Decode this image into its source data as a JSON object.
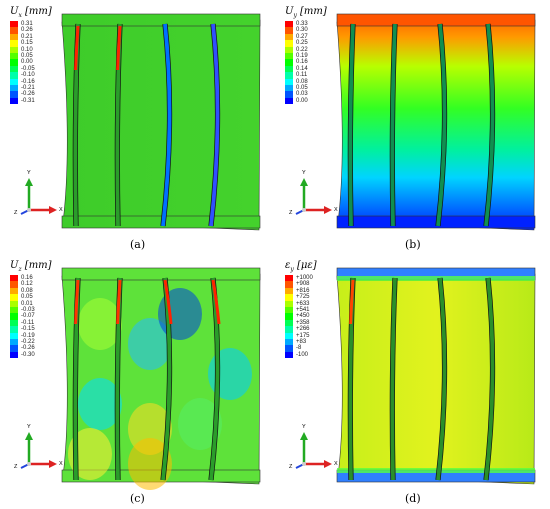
{
  "panels": [
    {
      "id": "a",
      "caption": "(a)",
      "legend_symbol": "U",
      "legend_sub": "x",
      "legend_unit": "[mm]",
      "values": [
        "0.31",
        "0.26",
        "0.21",
        "0.15",
        "0.10",
        "0.05",
        "0.00",
        "-0.05",
        "-0.10",
        "-0.16",
        "-0.21",
        "-0.26",
        "-0.31"
      ],
      "colors": [
        "#ff0000",
        "#ff5500",
        "#ffaa00",
        "#ffff00",
        "#aaff00",
        "#55ff00",
        "#00ff00",
        "#00ff55",
        "#00ffaa",
        "#00ffff",
        "#00aaff",
        "#0055ff",
        "#0000ff"
      ],
      "field": "ux",
      "triad": {
        "y": "Y",
        "z": "Z",
        "x": "X"
      }
    },
    {
      "id": "b",
      "caption": "(b)",
      "legend_symbol": "U",
      "legend_sub": "y",
      "legend_unit": "[mm]",
      "values": [
        "0.33",
        "0.30",
        "0.27",
        "0.25",
        "0.22",
        "0.19",
        "0.16",
        "0.14",
        "0.11",
        "0.08",
        "0.05",
        "0.03",
        "0.00"
      ],
      "colors": [
        "#ff0000",
        "#ff5500",
        "#ffaa00",
        "#ffff00",
        "#aaff00",
        "#55ff00",
        "#00ff00",
        "#00ff55",
        "#00ffaa",
        "#00ffff",
        "#00aaff",
        "#0055ff",
        "#0000ff"
      ],
      "field": "uy",
      "triad": {
        "y": "Y",
        "z": "Z",
        "x": "X"
      }
    },
    {
      "id": "c",
      "caption": "(c)",
      "legend_symbol": "U",
      "legend_sub": "z",
      "legend_unit": "[mm]",
      "values": [
        "0.16",
        "0.12",
        "0.08",
        "0.05",
        "0.01",
        "-0.03",
        "-0.07",
        "-0.11",
        "-0.15",
        "-0.19",
        "-0.22",
        "-0.26",
        "-0.30"
      ],
      "colors": [
        "#ff0000",
        "#ff5500",
        "#ffaa00",
        "#ffff00",
        "#aaff00",
        "#55ff00",
        "#00ff00",
        "#00ff55",
        "#00ffaa",
        "#00ffff",
        "#00aaff",
        "#0055ff",
        "#0000ff"
      ],
      "field": "uz",
      "triad": {
        "y": "Y",
        "z": "Z",
        "x": "X"
      }
    },
    {
      "id": "d",
      "caption": "(d)",
      "legend_symbol": "ε",
      "legend_sub": "y",
      "legend_unit": "[με]",
      "values": [
        "+1000",
        "+908",
        "+816",
        "+725",
        "+633",
        "+541",
        "+450",
        "+358",
        "+266",
        "+175",
        "+83",
        "-8",
        "-100"
      ],
      "colors": [
        "#ff0000",
        "#ff5500",
        "#ffaa00",
        "#ffff00",
        "#aaff00",
        "#55ff00",
        "#00ff00",
        "#00ff55",
        "#00ffaa",
        "#00ffff",
        "#00aaff",
        "#0055ff",
        "#0000ff"
      ],
      "field": "ey",
      "triad": {
        "y": "Y",
        "z": "Z",
        "x": "X"
      }
    }
  ]
}
